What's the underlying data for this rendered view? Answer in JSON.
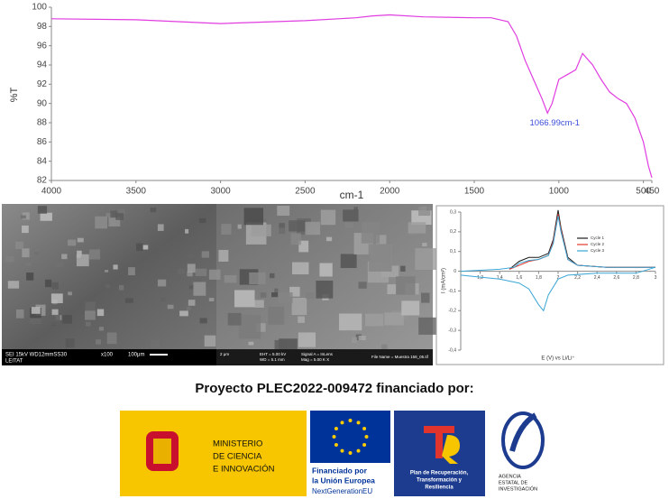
{
  "chart_data": [
    {
      "type": "line",
      "x_label": "cm-1",
      "y_label": "%T",
      "annotation": "1066.99cm-1",
      "x": [
        4000,
        3500,
        3000,
        2500,
        2200,
        2100,
        2000,
        1800,
        1500,
        1400,
        1300,
        1250,
        1200,
        1150,
        1100,
        1067,
        1040,
        1000,
        950,
        900,
        860,
        800,
        750,
        700,
        650,
        600,
        550,
        500,
        470,
        450
      ],
      "series": [
        {
          "color": "#e03ce0",
          "values": [
            98.8,
            98.7,
            98.3,
            98.6,
            98.9,
            99.1,
            99.2,
            99.0,
            98.9,
            98.9,
            98.5,
            97.0,
            94.5,
            92.5,
            90.5,
            89.0,
            90.0,
            92.5,
            93.0,
            93.5,
            95.2,
            94.0,
            92.5,
            91.2,
            90.5,
            90.0,
            88.5,
            86.0,
            83.5,
            82.3
          ]
        }
      ],
      "xlim": [
        4000,
        450
      ],
      "ylim": [
        82,
        100
      ],
      "xticks": [
        4000,
        3500,
        3000,
        2500,
        2000,
        1500,
        1000,
        500,
        450
      ],
      "yticks": [
        82,
        84,
        86,
        88,
        90,
        92,
        94,
        96,
        98,
        100
      ]
    },
    {
      "type": "line",
      "x_label": "E (V) vs Li/Li⁺",
      "y_label": "I (mA/cm²)",
      "series": [
        {
          "name": "Cycle 1",
          "color": "#1a1a1a",
          "x": [
            1.5,
            1.6,
            1.7,
            1.8,
            1.9,
            1.95,
            2.0,
            2.03,
            2.1,
            2.2,
            2.5,
            2.8,
            3.0
          ],
          "values": [
            0.01,
            0.05,
            0.07,
            0.07,
            0.09,
            0.16,
            0.31,
            0.22,
            0.07,
            0.03,
            0.02,
            0.02,
            0.02
          ]
        },
        {
          "name": "Cycle 2",
          "color": "#e0392b",
          "x": [
            1.5,
            1.6,
            1.7,
            1.8,
            1.9,
            1.95,
            2.0,
            2.03,
            2.1,
            2.2,
            2.5,
            2.8,
            3.0
          ],
          "values": [
            0.01,
            0.03,
            0.05,
            0.06,
            0.08,
            0.15,
            0.29,
            0.21,
            0.06,
            0.03,
            0.02,
            0.02,
            0.02
          ]
        },
        {
          "name": "Cycle 3",
          "color": "#3aa6d6",
          "x": [
            1.0,
            1.2,
            1.4,
            1.55,
            1.6,
            1.7,
            1.8,
            1.9,
            1.95,
            2.0,
            2.03,
            2.1,
            2.2,
            2.5,
            2.8,
            3.0,
            2.8,
            2.4,
            2.1,
            2.0,
            1.9,
            1.85,
            1.8,
            1.7,
            1.6,
            1.4,
            1.2,
            1.0
          ],
          "values": [
            0.0,
            0.005,
            0.01,
            0.02,
            0.04,
            0.055,
            0.06,
            0.08,
            0.14,
            0.28,
            0.2,
            0.06,
            0.03,
            0.02,
            0.02,
            0.02,
            -0.01,
            -0.01,
            -0.02,
            -0.04,
            -0.12,
            -0.2,
            -0.17,
            -0.09,
            -0.06,
            -0.04,
            -0.03,
            -0.02
          ]
        }
      ],
      "xlim": [
        1,
        3
      ],
      "ylim": [
        -0.4,
        0.3
      ],
      "xticks": [
        {
          "value": 1.2,
          "label": "1,2"
        },
        {
          "value": 1.4,
          "label": "1,4"
        },
        {
          "value": 1.6,
          "label": "1,6"
        },
        {
          "value": 1.8,
          "label": "1,8"
        },
        {
          "value": 2,
          "label": "2"
        },
        {
          "value": 2.2,
          "label": "2,2"
        },
        {
          "value": 2.4,
          "label": "2,4"
        },
        {
          "value": 2.6,
          "label": "2,6"
        },
        {
          "value": 2.8,
          "label": "2,8"
        },
        {
          "value": 3,
          "label": "3"
        }
      ],
      "yticks": [
        {
          "value": -0.4,
          "label": "-0,4"
        },
        {
          "value": -0.3,
          "label": "-0,3"
        },
        {
          "value": -0.2,
          "label": "-0,2"
        },
        {
          "value": -0.1,
          "label": "-0,1"
        },
        0,
        {
          "value": 0.1,
          "label": "0,1"
        },
        {
          "value": 0.2,
          "label": "0,2"
        },
        {
          "value": 0.3,
          "label": "0,3"
        }
      ]
    }
  ],
  "sem": {
    "left_bar": "SEI  15kV  WD12mmSS30",
    "left_mag": "x100",
    "left_scale": "100μm",
    "left_lab": "LEITAT",
    "right_scale": "2 μm",
    "right_eht": "EHT = 5.00 kV",
    "right_wd": "WD = 5.1 mm",
    "right_signal": "Signal A = InLens",
    "right_mag": "Mag = 5.00 K X",
    "right_file": "File Name = Muestra 158_05.tif"
  },
  "footer": {
    "title": "Proyecto PLEC2022-009472 financiado por:",
    "ministry": [
      "MINISTERIO",
      "DE CIENCIA",
      "E INNOVACIÓN"
    ],
    "eu": [
      "Financiado por",
      "la Unión Europea",
      "NextGenerationEU"
    ],
    "plan": [
      "Plan de Recuperación,",
      "Transformación y",
      "Resiliencia"
    ],
    "aei": [
      "AGENCIA",
      "ESTATAL DE",
      "INVESTIGACIÓN"
    ]
  }
}
